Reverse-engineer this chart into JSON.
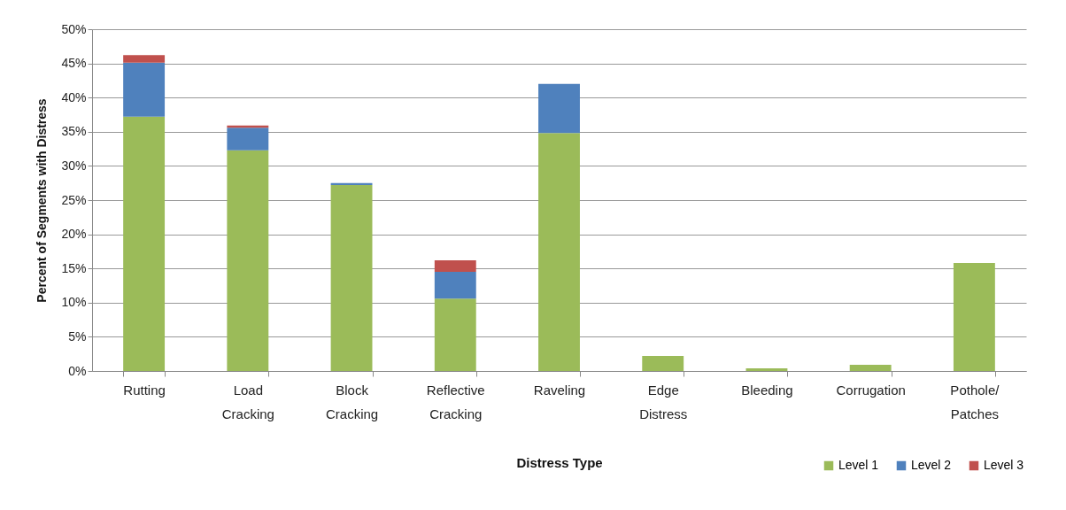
{
  "chart_data": {
    "type": "bar",
    "stacked": true,
    "xlabel": "Distress Type",
    "ylabel": "Percent of Segments with Distress",
    "categories": [
      "Rutting",
      "Load Cracking",
      "Block Cracking",
      "Reflective Cracking",
      "Raveling",
      "Edge Distress",
      "Bleeding",
      "Corrugation",
      "Pothole/ Patches"
    ],
    "series": [
      {
        "name": "Level 1",
        "color": "#9bbb59",
        "values": [
          37.2,
          32.3,
          27.2,
          10.6,
          34.8,
          2.2,
          0.4,
          0.9,
          15.8
        ]
      },
      {
        "name": "Level 2",
        "color": "#4f81bd",
        "values": [
          7.9,
          3.3,
          0.3,
          3.9,
          7.2,
          null,
          null,
          null,
          null
        ]
      },
      {
        "name": "Level 3",
        "color": "#c0504d",
        "values": [
          1.1,
          0.3,
          null,
          1.7,
          null,
          null,
          null,
          null,
          null
        ]
      }
    ],
    "ylim": [
      0,
      50
    ],
    "yticks": [
      {
        "value": 0,
        "label": "0%"
      },
      {
        "value": 5,
        "label": "5%"
      },
      {
        "value": 10,
        "label": "10%"
      },
      {
        "value": 15,
        "label": "15%"
      },
      {
        "value": 20,
        "label": "20%"
      },
      {
        "value": 25,
        "label": "25%"
      },
      {
        "value": 30,
        "label": "30%"
      },
      {
        "value": 35,
        "label": "35%"
      },
      {
        "value": 40,
        "label": "40%"
      },
      {
        "value": 45,
        "label": "45%"
      },
      {
        "value": 50,
        "label": "50%"
      }
    ],
    "grid": "y",
    "legend": "bottom right"
  }
}
